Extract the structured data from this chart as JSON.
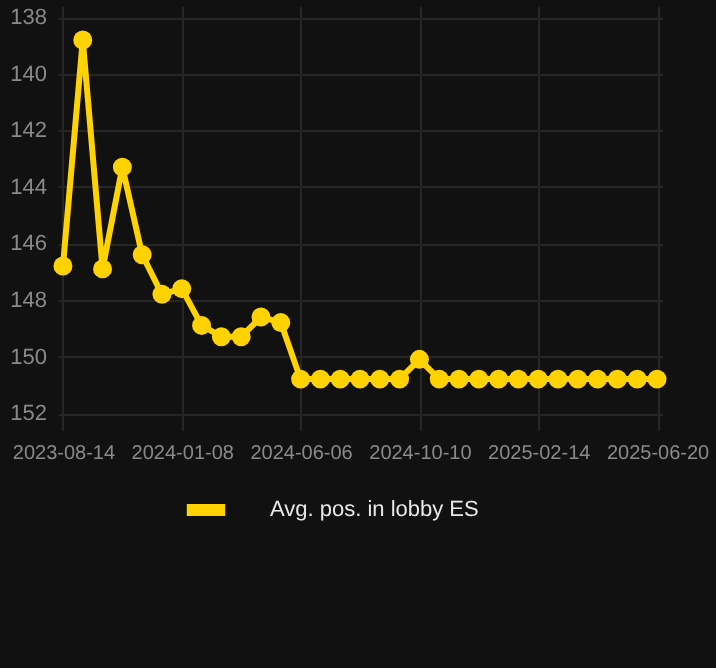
{
  "chart_data": {
    "type": "line",
    "categories": [
      "2023-08-14",
      null,
      null,
      null,
      null,
      null,
      "2024-01-08",
      null,
      null,
      null,
      null,
      null,
      "2024-06-06",
      null,
      null,
      null,
      null,
      null,
      "2024-10-10",
      null,
      null,
      null,
      null,
      null,
      "2025-02-14",
      null,
      null,
      null,
      null,
      null,
      "2025-06-20"
    ],
    "series": [
      {
        "name": "Avg. pos. in lobby ES",
        "color": "#ffd200",
        "values": [
          146.8,
          138.8,
          146.9,
          143.3,
          146.4,
          147.8,
          147.6,
          148.9,
          149.3,
          149.3,
          148.6,
          148.8,
          150.8,
          150.8,
          150.8,
          150.8,
          150.8,
          150.8,
          150.1,
          150.8,
          150.8,
          150.8,
          150.8,
          150.8,
          150.8,
          150.8,
          150.8,
          150.8,
          150.8,
          150.8,
          150.8
        ]
      }
    ],
    "ylim": [
      152.6,
      137.6
    ],
    "yticks": [
      138,
      140,
      142,
      144,
      146,
      148,
      150,
      152
    ],
    "grid": true,
    "legend": "bottom",
    "marker": "circle",
    "line_style": "solid"
  }
}
